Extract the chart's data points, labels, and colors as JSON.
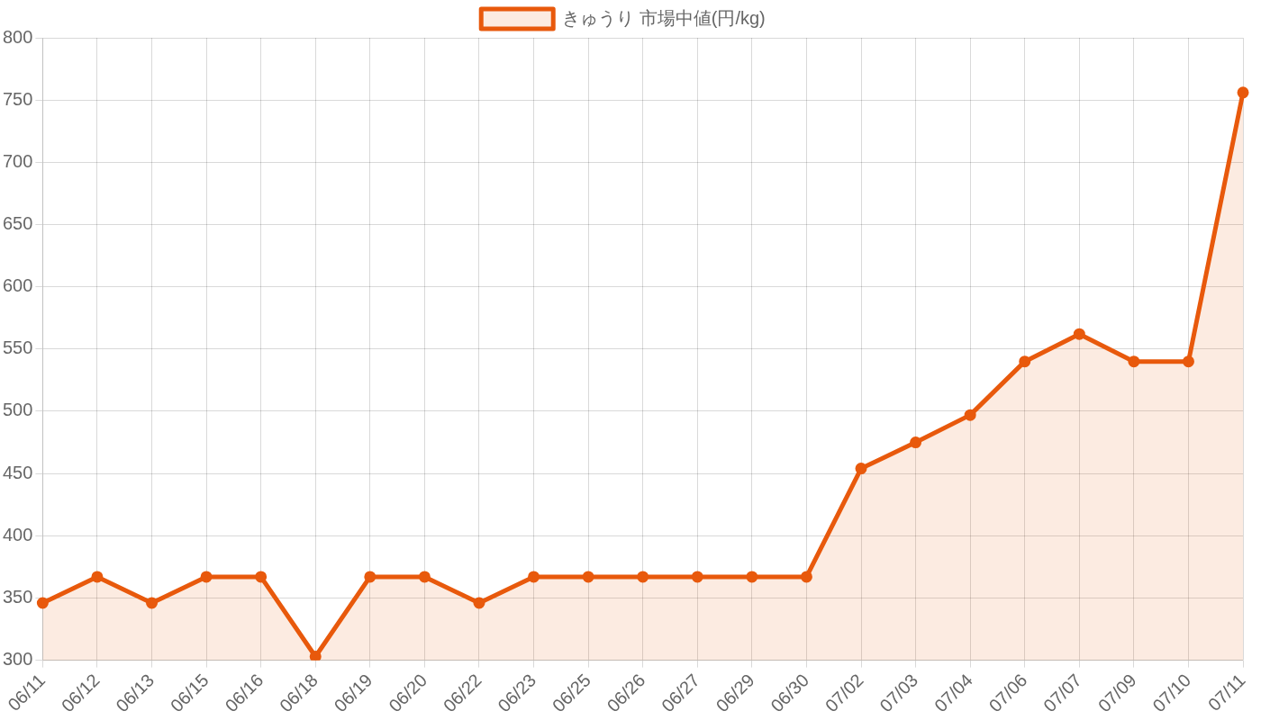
{
  "chart_data": {
    "type": "area",
    "categories": [
      "06/11",
      "06/12",
      "06/13",
      "06/15",
      "06/16",
      "06/18",
      "06/19",
      "06/20",
      "06/22",
      "06/23",
      "06/25",
      "06/26",
      "06/27",
      "06/29",
      "06/30",
      "07/02",
      "07/03",
      "07/04",
      "07/06",
      "07/07",
      "07/09",
      "07/10",
      "07/11"
    ],
    "series": [
      {
        "name": "きゅうり 市場中値(円/kg)",
        "color": "#e8590c",
        "values": [
          346,
          367,
          346,
          367,
          367,
          303,
          367,
          367,
          346,
          367,
          367,
          367,
          367,
          367,
          367,
          454,
          475,
          497,
          540,
          562,
          540,
          540,
          756
        ]
      }
    ],
    "ylim": [
      300,
      800
    ],
    "yticks": [
      300,
      350,
      400,
      450,
      500,
      550,
      600,
      650,
      700,
      750,
      800
    ],
    "grid": true,
    "legend": "top",
    "marker": "circle",
    "line_style": "solid"
  }
}
